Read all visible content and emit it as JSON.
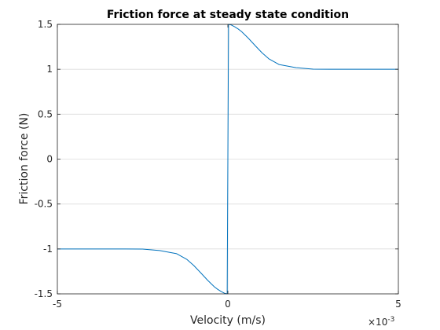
{
  "chart_data": {
    "type": "line",
    "title": "Friction force at steady state condition",
    "xlabel": "Velocity (m/s)",
    "ylabel": "Friction force (N)",
    "x_exponent_base": "×10",
    "x_exponent_power": "-3",
    "xlim": [
      -0.005,
      0.005
    ],
    "ylim": [
      -1.5,
      1.5
    ],
    "x_ticks": [
      -0.005,
      0,
      0.005
    ],
    "x_tick_labels": [
      "-5",
      "0",
      "5"
    ],
    "y_ticks": [
      -1.5,
      -1,
      -0.5,
      0,
      0.5,
      1,
      1.5
    ],
    "y_tick_labels": [
      "-1.5",
      "-1",
      "-0.5",
      "0",
      "0.5",
      "1",
      "1.5"
    ],
    "grid": true,
    "line_color": "#0072BD",
    "series": [
      {
        "x": [
          -0.005,
          -0.004,
          -0.003,
          -0.0025,
          -0.002,
          -0.0015,
          -0.0012,
          -0.001,
          -0.0008,
          -0.0006,
          -0.0004,
          -0.0003,
          -0.0002,
          -0.0001,
          -2e-05,
          0.0,
          2e-05,
          0.0001,
          0.0002,
          0.0003,
          0.0004,
          0.0006,
          0.0008,
          0.001,
          0.0012,
          0.0015,
          0.002,
          0.0025,
          0.003,
          0.004,
          0.005
        ],
        "y": [
          -1.0,
          -1.0,
          -1.0,
          -1.002,
          -1.018,
          -1.053,
          -1.117,
          -1.184,
          -1.264,
          -1.346,
          -1.42,
          -1.449,
          -1.473,
          -1.493,
          -1.5,
          0.0,
          1.5,
          1.493,
          1.473,
          1.449,
          1.42,
          1.346,
          1.264,
          1.184,
          1.117,
          1.053,
          1.018,
          1.002,
          1.0,
          1.0,
          1.0
        ]
      }
    ]
  }
}
